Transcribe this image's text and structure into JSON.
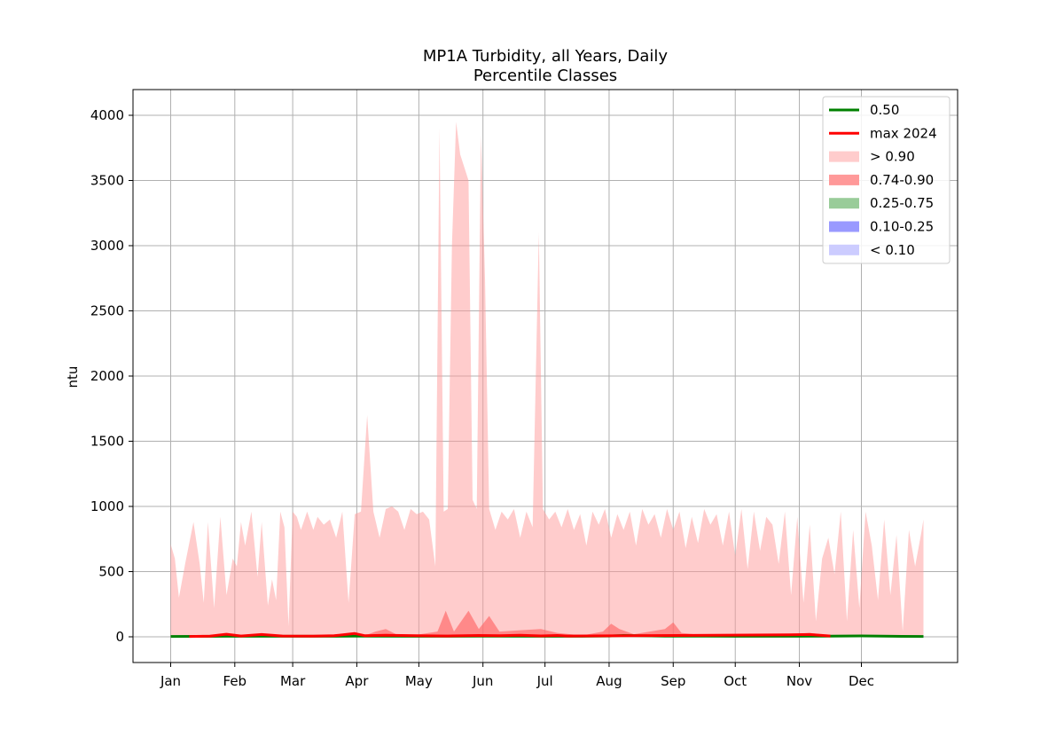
{
  "chart_data": {
    "type": "area",
    "title": "MP1A Turbidity, all Years, Daily",
    "subtitle": "Percentile Classes",
    "xlabel": "",
    "ylabel": "ntu",
    "ylim": [
      -200,
      4200
    ],
    "y_ticks": [
      "0",
      "500",
      "1000",
      "1500",
      "2000",
      "2500",
      "3000",
      "3500",
      "4000"
    ],
    "y_tick_values": [
      0,
      500,
      1000,
      1500,
      2000,
      2500,
      3000,
      3500,
      4000
    ],
    "x_ticks": [
      "Jan",
      "Feb",
      "Mar",
      "Apr",
      "May",
      "Jun",
      "Jul",
      "Aug",
      "Sep",
      "Oct",
      "Nov",
      "Dec"
    ],
    "x_tick_days": [
      1,
      32,
      60,
      91,
      121,
      152,
      182,
      213,
      244,
      274,
      305,
      335
    ],
    "grid": true,
    "legend_position": "top-right",
    "series": [
      {
        "name": "0.50",
        "kind": "line",
        "color": "#008000",
        "points": [
          [
            1,
            3
          ],
          [
            30,
            4
          ],
          [
            60,
            4
          ],
          [
            90,
            5
          ],
          [
            120,
            4
          ],
          [
            150,
            5
          ],
          [
            182,
            4
          ],
          [
            200,
            4
          ],
          [
            213,
            6
          ],
          [
            220,
            10
          ],
          [
            240,
            5
          ],
          [
            260,
            5
          ],
          [
            274,
            4
          ],
          [
            290,
            4
          ],
          [
            305,
            4
          ],
          [
            320,
            5
          ],
          [
            335,
            7
          ],
          [
            350,
            4
          ],
          [
            365,
            3
          ]
        ]
      },
      {
        "name": "max 2024",
        "kind": "line",
        "color": "#ff0000",
        "points": [
          [
            10,
            3
          ],
          [
            20,
            5
          ],
          [
            28,
            20
          ],
          [
            35,
            6
          ],
          [
            45,
            18
          ],
          [
            55,
            6
          ],
          [
            70,
            5
          ],
          [
            80,
            8
          ],
          [
            90,
            25
          ],
          [
            95,
            8
          ],
          [
            105,
            12
          ],
          [
            120,
            8
          ],
          [
            135,
            6
          ],
          [
            150,
            10
          ],
          [
            160,
            8
          ],
          [
            170,
            12
          ],
          [
            180,
            7
          ],
          [
            188,
            10
          ],
          [
            193,
            6
          ],
          [
            300,
            15
          ],
          [
            310,
            18
          ],
          [
            320,
            6
          ]
        ]
      },
      {
        "name": "> 0.90",
        "kind": "band",
        "color": "#ff9999",
        "opacity": 0.5,
        "upper": [
          [
            1,
            710
          ],
          [
            3,
            600
          ],
          [
            5,
            300
          ],
          [
            8,
            560
          ],
          [
            12,
            880
          ],
          [
            15,
            560
          ],
          [
            17,
            260
          ],
          [
            19,
            880
          ],
          [
            22,
            220
          ],
          [
            25,
            920
          ],
          [
            28,
            320
          ],
          [
            31,
            600
          ],
          [
            33,
            540
          ],
          [
            35,
            880
          ],
          [
            37,
            700
          ],
          [
            40,
            960
          ],
          [
            43,
            460
          ],
          [
            45,
            880
          ],
          [
            48,
            240
          ],
          [
            50,
            440
          ],
          [
            52,
            280
          ],
          [
            54,
            960
          ],
          [
            56,
            840
          ],
          [
            58,
            80
          ],
          [
            60,
            960
          ],
          [
            62,
            920
          ],
          [
            64,
            820
          ],
          [
            67,
            960
          ],
          [
            70,
            820
          ],
          [
            72,
            920
          ],
          [
            75,
            860
          ],
          [
            78,
            900
          ],
          [
            81,
            760
          ],
          [
            84,
            960
          ],
          [
            87,
            260
          ],
          [
            90,
            940
          ],
          [
            93,
            960
          ],
          [
            96,
            1700
          ],
          [
            99,
            960
          ],
          [
            102,
            760
          ],
          [
            105,
            980
          ],
          [
            108,
            1000
          ],
          [
            111,
            960
          ],
          [
            114,
            820
          ],
          [
            117,
            980
          ],
          [
            120,
            940
          ],
          [
            123,
            960
          ],
          [
            126,
            900
          ],
          [
            129,
            540
          ],
          [
            131,
            3900
          ],
          [
            133,
            960
          ],
          [
            135,
            980
          ],
          [
            137,
            3000
          ],
          [
            139,
            3950
          ],
          [
            141,
            3700
          ],
          [
            143,
            3600
          ],
          [
            145,
            3500
          ],
          [
            147,
            1050
          ],
          [
            149,
            980
          ],
          [
            151,
            3850
          ],
          [
            153,
            2750
          ],
          [
            155,
            980
          ],
          [
            158,
            820
          ],
          [
            161,
            960
          ],
          [
            164,
            900
          ],
          [
            167,
            980
          ],
          [
            170,
            760
          ],
          [
            173,
            960
          ],
          [
            176,
            840
          ],
          [
            179,
            3100
          ],
          [
            181,
            980
          ],
          [
            184,
            900
          ],
          [
            187,
            960
          ],
          [
            190,
            840
          ],
          [
            193,
            980
          ],
          [
            196,
            820
          ],
          [
            199,
            940
          ],
          [
            202,
            700
          ],
          [
            205,
            960
          ],
          [
            208,
            860
          ],
          [
            211,
            980
          ],
          [
            214,
            760
          ],
          [
            217,
            940
          ],
          [
            220,
            820
          ],
          [
            223,
            960
          ],
          [
            226,
            700
          ],
          [
            229,
            980
          ],
          [
            232,
            860
          ],
          [
            235,
            940
          ],
          [
            238,
            760
          ],
          [
            241,
            980
          ],
          [
            244,
            820
          ],
          [
            247,
            960
          ],
          [
            250,
            680
          ],
          [
            253,
            920
          ],
          [
            256,
            720
          ],
          [
            259,
            980
          ],
          [
            262,
            860
          ],
          [
            265,
            940
          ],
          [
            268,
            700
          ],
          [
            271,
            960
          ],
          [
            274,
            620
          ],
          [
            277,
            980
          ],
          [
            280,
            520
          ],
          [
            283,
            960
          ],
          [
            286,
            660
          ],
          [
            289,
            920
          ],
          [
            292,
            860
          ],
          [
            295,
            560
          ],
          [
            298,
            960
          ],
          [
            301,
            320
          ],
          [
            304,
            920
          ],
          [
            307,
            260
          ],
          [
            310,
            860
          ],
          [
            313,
            120
          ],
          [
            316,
            600
          ],
          [
            319,
            760
          ],
          [
            322,
            480
          ],
          [
            325,
            960
          ],
          [
            328,
            120
          ],
          [
            331,
            820
          ],
          [
            334,
            220
          ],
          [
            337,
            960
          ],
          [
            340,
            700
          ],
          [
            343,
            280
          ],
          [
            346,
            900
          ],
          [
            349,
            320
          ],
          [
            352,
            780
          ],
          [
            355,
            40
          ],
          [
            358,
            820
          ],
          [
            361,
            540
          ],
          [
            364,
            800
          ],
          [
            365,
            900
          ]
        ],
        "lower": [
          [
            1,
            0
          ],
          [
            365,
            0
          ]
        ]
      },
      {
        "name": "0.74-0.90",
        "kind": "band",
        "color": "#ff6666",
        "opacity": 0.65,
        "upper": [
          [
            1,
            5
          ],
          [
            80,
            6
          ],
          [
            95,
            10
          ],
          [
            100,
            40
          ],
          [
            105,
            60
          ],
          [
            110,
            20
          ],
          [
            120,
            15
          ],
          [
            130,
            40
          ],
          [
            134,
            200
          ],
          [
            138,
            40
          ],
          [
            145,
            200
          ],
          [
            150,
            60
          ],
          [
            155,
            160
          ],
          [
            160,
            40
          ],
          [
            170,
            50
          ],
          [
            180,
            60
          ],
          [
            188,
            30
          ],
          [
            200,
            10
          ],
          [
            210,
            40
          ],
          [
            214,
            100
          ],
          [
            218,
            60
          ],
          [
            225,
            20
          ],
          [
            240,
            60
          ],
          [
            244,
            110
          ],
          [
            248,
            30
          ],
          [
            260,
            10
          ],
          [
            300,
            20
          ],
          [
            310,
            30
          ],
          [
            320,
            10
          ],
          [
            365,
            5
          ]
        ],
        "lower": [
          [
            1,
            0
          ],
          [
            365,
            0
          ]
        ]
      },
      {
        "name": "0.25-0.75",
        "kind": "band",
        "color": "#66bb66",
        "opacity": 0.65,
        "upper": [
          [
            1,
            4
          ],
          [
            365,
            4
          ]
        ],
        "lower": [
          [
            1,
            0
          ],
          [
            365,
            0
          ]
        ]
      },
      {
        "name": "0.10-0.25",
        "kind": "band",
        "color": "#6666ff",
        "opacity": 0.65,
        "upper": [
          [
            1,
            1
          ],
          [
            365,
            1
          ]
        ],
        "lower": [
          [
            1,
            0
          ],
          [
            365,
            0
          ]
        ]
      },
      {
        "name": "< 0.10",
        "kind": "band",
        "color": "#9999ff",
        "opacity": 0.5,
        "upper": [
          [
            1,
            0
          ],
          [
            365,
            0
          ]
        ],
        "lower": [
          [
            1,
            0
          ],
          [
            365,
            0
          ]
        ]
      }
    ],
    "legend": [
      {
        "label": "0.50",
        "kind": "line",
        "color": "#008000"
      },
      {
        "label": "max 2024",
        "kind": "line",
        "color": "#ff0000"
      },
      {
        "label": "> 0.90",
        "kind": "patch",
        "color": "#ffcccc"
      },
      {
        "label": "0.74-0.90",
        "kind": "patch",
        "color": "#ff9999"
      },
      {
        "label": "0.25-0.75",
        "kind": "patch",
        "color": "#99cc99"
      },
      {
        "label": "0.10-0.25",
        "kind": "patch",
        "color": "#9999ff"
      },
      {
        "label": "< 0.10",
        "kind": "patch",
        "color": "#ccccff"
      }
    ]
  }
}
